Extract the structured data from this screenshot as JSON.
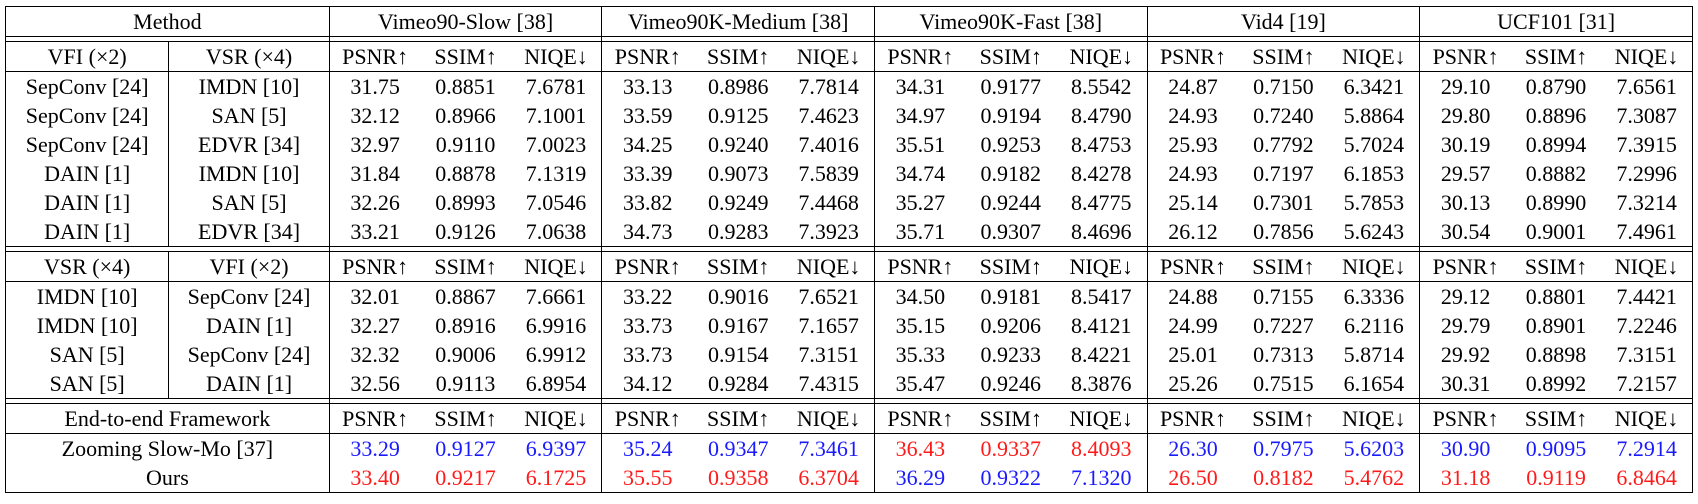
{
  "header": {
    "method": "Method",
    "datasets": [
      "Vimeo90-Slow [38]",
      "Vimeo90K-Medium [38]",
      "Vimeo90K-Fast [38]",
      "Vid4 [19]",
      "UCF101 [31]"
    ]
  },
  "metrics": [
    "PSNR↑",
    "SSIM↑",
    "NIQE↓"
  ],
  "section1": {
    "col1": "VFI (×2)",
    "col2": "VSR (×4)",
    "rows": [
      {
        "a": "SepConv [24]",
        "b": "IMDN [10]",
        "v": [
          "31.75",
          "0.8851",
          "7.6781",
          "33.13",
          "0.8986",
          "7.7814",
          "34.31",
          "0.9177",
          "8.5542",
          "24.87",
          "0.7150",
          "6.3421",
          "29.10",
          "0.8790",
          "7.6561"
        ]
      },
      {
        "a": "SepConv [24]",
        "b": "SAN [5]",
        "v": [
          "32.12",
          "0.8966",
          "7.1001",
          "33.59",
          "0.9125",
          "7.4623",
          "34.97",
          "0.9194",
          "8.4790",
          "24.93",
          "0.7240",
          "5.8864",
          "29.80",
          "0.8896",
          "7.3087"
        ]
      },
      {
        "a": "SepConv [24]",
        "b": "EDVR [34]",
        "v": [
          "32.97",
          "0.9110",
          "7.0023",
          "34.25",
          "0.9240",
          "7.4016",
          "35.51",
          "0.9253",
          "8.4753",
          "25.93",
          "0.7792",
          "5.7024",
          "30.19",
          "0.8994",
          "7.3915"
        ]
      },
      {
        "a": "DAIN [1]",
        "b": "IMDN [10]",
        "v": [
          "31.84",
          "0.8878",
          "7.1319",
          "33.39",
          "0.9073",
          "7.5839",
          "34.74",
          "0.9182",
          "8.4278",
          "24.93",
          "0.7197",
          "6.1853",
          "29.57",
          "0.8882",
          "7.2996"
        ]
      },
      {
        "a": "DAIN [1]",
        "b": "SAN [5]",
        "v": [
          "32.26",
          "0.8993",
          "7.0546",
          "33.82",
          "0.9249",
          "7.4468",
          "35.27",
          "0.9244",
          "8.4775",
          "25.14",
          "0.7301",
          "5.7853",
          "30.13",
          "0.8990",
          "7.3214"
        ]
      },
      {
        "a": "DAIN [1]",
        "b": "EDVR [34]",
        "v": [
          "33.21",
          "0.9126",
          "7.0638",
          "34.73",
          "0.9283",
          "7.3923",
          "35.71",
          "0.9307",
          "8.4696",
          "26.12",
          "0.7856",
          "5.6243",
          "30.54",
          "0.9001",
          "7.4961"
        ]
      }
    ]
  },
  "section2": {
    "col1": "VSR (×4)",
    "col2": "VFI (×2)",
    "rows": [
      {
        "a": "IMDN [10]",
        "b": "SepConv [24]",
        "v": [
          "32.01",
          "0.8867",
          "7.6661",
          "33.22",
          "0.9016",
          "7.6521",
          "34.50",
          "0.9181",
          "8.5417",
          "24.88",
          "0.7155",
          "6.3336",
          "29.12",
          "0.8801",
          "7.4421"
        ]
      },
      {
        "a": "IMDN [10]",
        "b": "DAIN [1]",
        "v": [
          "32.27",
          "0.8916",
          "6.9916",
          "33.73",
          "0.9167",
          "7.1657",
          "35.15",
          "0.9206",
          "8.4121",
          "24.99",
          "0.7227",
          "6.2116",
          "29.79",
          "0.8901",
          "7.2246"
        ]
      },
      {
        "a": "SAN [5]",
        "b": "SepConv [24]",
        "v": [
          "32.32",
          "0.9006",
          "6.9912",
          "33.73",
          "0.9154",
          "7.3151",
          "35.33",
          "0.9233",
          "8.4221",
          "25.01",
          "0.7313",
          "5.8714",
          "29.92",
          "0.8898",
          "7.3151"
        ]
      },
      {
        "a": "SAN [5]",
        "b": "DAIN [1]",
        "v": [
          "32.56",
          "0.9113",
          "6.8954",
          "34.12",
          "0.9284",
          "7.4315",
          "35.47",
          "0.9246",
          "8.3876",
          "25.26",
          "0.7515",
          "6.1654",
          "30.31",
          "0.8992",
          "7.2157"
        ]
      }
    ]
  },
  "section3": {
    "title": "End-to-end Framework",
    "rows": [
      {
        "name": "Zooming Slow-Mo [37]",
        "v": [
          "33.29",
          "0.9127",
          "6.9397",
          "35.24",
          "0.9347",
          "7.3461",
          "36.43",
          "0.9337",
          "8.4093",
          "26.30",
          "0.7975",
          "5.6203",
          "30.90",
          "0.9095",
          "7.2914"
        ],
        "c": [
          "blue",
          "blue",
          "blue",
          "blue",
          "blue",
          "blue",
          "red",
          "red",
          "red",
          "blue",
          "blue",
          "blue",
          "blue",
          "blue",
          "blue"
        ]
      },
      {
        "name": "Ours",
        "v": [
          "33.40",
          "0.9217",
          "6.1725",
          "35.55",
          "0.9358",
          "6.3704",
          "36.29",
          "0.9322",
          "7.1320",
          "26.50",
          "0.8182",
          "5.4762",
          "31.18",
          "0.9119",
          "6.8464"
        ],
        "c": [
          "red",
          "red",
          "red",
          "red",
          "red",
          "red",
          "blue",
          "blue",
          "blue",
          "red",
          "red",
          "red",
          "red",
          "red",
          "red"
        ]
      }
    ]
  },
  "colors": {
    "blue": "#1a1aff",
    "red": "#ff1a1a"
  }
}
